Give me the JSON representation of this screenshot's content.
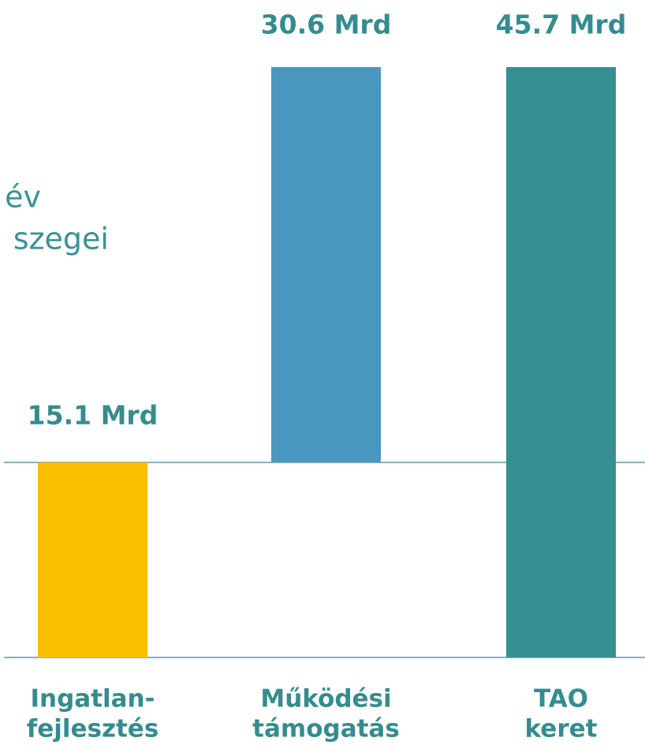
{
  "chart_data": {
    "type": "waterfall",
    "notes": [
      "év",
      "szegei"
    ],
    "categories": [
      [
        "Ingatlan-",
        "fejlesztés"
      ],
      [
        "Működési",
        "támogatás"
      ],
      [
        "TAO",
        "keret"
      ]
    ],
    "values": [
      15.1,
      30.6,
      45.7
    ],
    "value_labels": [
      "15.1 Mrd",
      "30.6 Mrd",
      "45.7 Mrd"
    ],
    "measures": [
      "relative",
      "relative",
      "total"
    ],
    "colors": [
      "#fbbf00",
      "#4a97bf",
      "#378f91"
    ]
  }
}
